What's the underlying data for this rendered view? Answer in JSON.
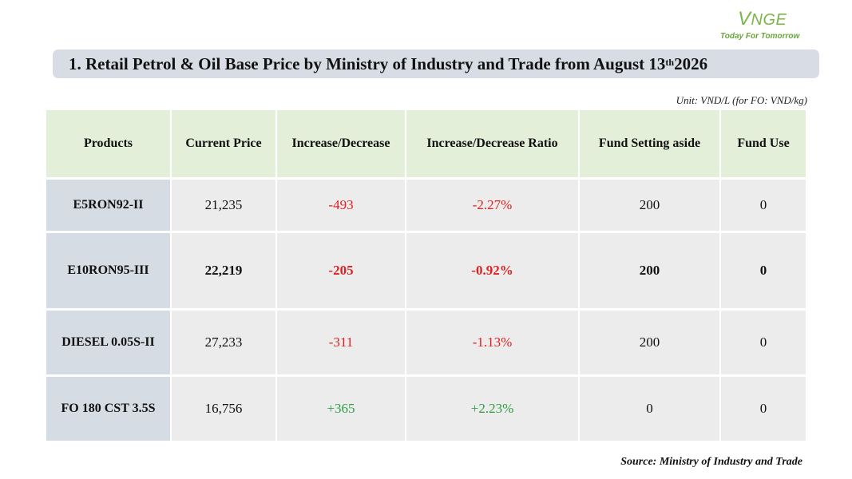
{
  "logo": {
    "mark_v": "V",
    "mark_rest": "NGE",
    "tagline": "Today For Tomorrow"
  },
  "title": {
    "text": "1. Retail Petrol & Oil Base Price by Ministry of Industry and Trade from August 13",
    "sup": "th",
    "year": " 2026"
  },
  "unit_note": "Unit: VND/L (for FO: VND/kg)",
  "table": {
    "headers": [
      "Products",
      "Current Price",
      "Increase/Decrease",
      "Increase/Decrease Ratio",
      "Fund Setting aside",
      "Fund Use"
    ],
    "rows": [
      {
        "product": "E5RON92-II",
        "price": "21,235",
        "change": "-493",
        "ratio": "-2.27%",
        "fund_aside": "200",
        "fund_use": "0"
      },
      {
        "product": "E10RON95-III",
        "price": "22,219",
        "change": "-205",
        "ratio": "-0.92%",
        "fund_aside": "200",
        "fund_use": "0"
      },
      {
        "product": "DIESEL 0.05S-II",
        "price": "27,233",
        "change": "-311",
        "ratio": "-1.13%",
        "fund_aside": "200",
        "fund_use": "0"
      },
      {
        "product": "FO 180 CST 3.5S",
        "price": "16,756",
        "change": "+365",
        "ratio": "+2.23%",
        "fund_aside": "0",
        "fund_use": "0"
      }
    ]
  },
  "source": "Source: Ministry of Industry and Trade",
  "colors": {
    "decrease": "#e02020",
    "increase": "#2e9d44",
    "header_bg": "#e3efd9",
    "product_bg": "#d6dce4",
    "title_bg": "#d8dde5"
  }
}
